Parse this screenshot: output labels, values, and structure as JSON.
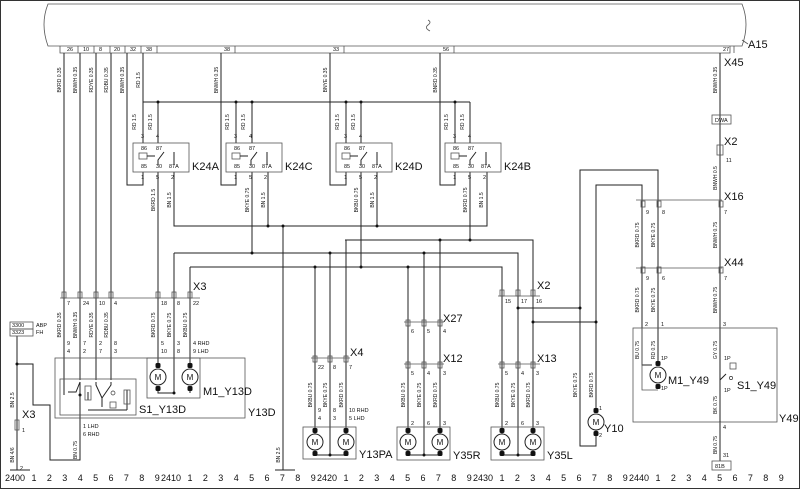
{
  "module": {
    "name": "A15",
    "pins": [
      "26",
      "10",
      "8",
      "20",
      "32",
      "38",
      "38",
      "33",
      "56",
      "27"
    ]
  },
  "relays": [
    {
      "name": "K24A",
      "terminals": [
        "3",
        "4",
        "86",
        "87",
        "85",
        "30",
        "87A",
        "1",
        "5",
        "2"
      ]
    },
    {
      "name": "K24C",
      "terminals": [
        "3",
        "4",
        "86",
        "87",
        "85",
        "30",
        "87A",
        "1",
        "5",
        "2"
      ]
    },
    {
      "name": "K24D",
      "terminals": [
        "3",
        "4",
        "86",
        "87",
        "85",
        "30",
        "87A",
        "1",
        "5",
        "2"
      ]
    },
    {
      "name": "K24B",
      "terminals": [
        "3",
        "4",
        "86",
        "87",
        "85",
        "30",
        "87A",
        "1",
        "5",
        "2"
      ]
    }
  ],
  "connectors": {
    "X45": {
      "name": "X45"
    },
    "X2_top": {
      "name": "X2",
      "pins": [
        "11"
      ]
    },
    "X16": {
      "name": "X16",
      "pins": [
        "9",
        "8",
        "7"
      ]
    },
    "X44": {
      "name": "X44",
      "pins": [
        "9",
        "6",
        "7"
      ]
    },
    "X3": {
      "name": "X3",
      "pins": [
        "7",
        "24",
        "10",
        "4",
        "18",
        "8",
        "22"
      ]
    },
    "X3_left": {
      "name": "X3",
      "pins": [
        "1",
        "2"
      ]
    },
    "X2": {
      "name": "X2",
      "pins": [
        "15",
        "17",
        "16"
      ]
    },
    "X27": {
      "name": "X27",
      "pins": [
        "6",
        "5",
        "4"
      ]
    },
    "X4": {
      "name": "X4",
      "pins": [
        "22",
        "8",
        "7"
      ]
    },
    "X12": {
      "name": "X12",
      "pins": [
        "5",
        "4",
        "3"
      ]
    },
    "X13": {
      "name": "X13",
      "pins": [
        "5",
        "4",
        "3"
      ]
    }
  },
  "components": {
    "Y13D": {
      "name": "Y13D",
      "switch": "S1_Y13D",
      "motor": "M1_Y13D",
      "pin_rows": [
        "9",
        "7",
        "2",
        "8",
        "5",
        "3",
        "4 RHD",
        "4",
        "2",
        "7",
        "3",
        "10",
        "8",
        "9 LHD"
      ],
      "switch_pins": [
        "1  LHD",
        "6  RHD"
      ]
    },
    "Y13PA": {
      "name": "Y13PA",
      "pin_rows": [
        "9",
        "8",
        "10  RHD",
        "4",
        "3",
        "5  LHD"
      ]
    },
    "Y35R": {
      "name": "Y35R",
      "pins": [
        "2",
        "6",
        "3"
      ]
    },
    "Y35L": {
      "name": "Y35L",
      "pins": [
        "2",
        "6",
        "3"
      ]
    },
    "Y10": {
      "name": "Y10",
      "pins": [
        "1",
        "2"
      ]
    },
    "Y49": {
      "name": "Y49",
      "motor": "M1_Y49",
      "switch": "S1_Y49",
      "pins": [
        "2",
        "1",
        "3",
        "4",
        "31"
      ],
      "motor_pins": [
        "1P",
        "1P"
      ],
      "switch_pins": [
        "1P",
        "1P"
      ]
    }
  },
  "motor_symbol": "M",
  "references": {
    "dwa": "DWA",
    "ground": "81B"
  },
  "legend_boxes": [
    {
      "code": "3300",
      "label": "ABP"
    },
    {
      "code": "3323",
      "label": "FH"
    }
  ],
  "wire_labels": [
    "BKRD 0.35",
    "BNWH 0.35",
    "RDYE 0.35",
    "RDBU 0.35",
    "BNWH 0.35",
    "RD 1.5",
    "BNWH 0.35",
    "BNYE 0.35",
    "BNRD 0.35",
    "BNWH 0.35",
    "RD 1.5",
    "RD 1.5",
    "RD 1.5",
    "RD 1.5",
    "RD 1.5",
    "RD 1.5",
    "RD 1.5",
    "RD 1.5",
    "BKRD 1.5",
    "BN 1.5",
    "BKYE 0.75",
    "BN 1.5",
    "BKBU 0.75",
    "BN 1.5",
    "BKRD 0.75",
    "BN 1.5",
    "BNWH 0.5",
    "BKRD 0.75",
    "BKYE 0.75",
    "BNWH 0.75",
    "BKRD 0.75",
    "BKYE 0.75",
    "BNWH 0.75",
    "BU 0.75",
    "RD 0.75",
    "GY 0.75",
    "BK 0.75",
    "BN 0.75",
    "BKRD 0.35",
    "BNWH 0.35",
    "RDYE 0.35",
    "RDBU 0.35",
    "BKRD 0.75",
    "BKYE 0.75",
    "BKBU 0.75",
    "BKBU 0.75",
    "BKYE 0.75",
    "BKRD 0.75",
    "BKBU 0.75",
    "BKYE 0.75",
    "BKRD 0.75",
    "BKBU 0.75",
    "BKYE 0.75",
    "BKRD 0.75",
    "BKYE 0.75",
    "BKRD 0.75",
    "BN 2.5",
    "BN 4/6",
    "BN 0.75",
    "BN 2.5"
  ],
  "grid": {
    "sections": [
      "2400",
      "2410",
      "2420",
      "2430",
      "2440"
    ],
    "subdivisions": [
      "1",
      "2",
      "3",
      "4",
      "5",
      "6",
      "7",
      "8",
      "9"
    ]
  }
}
